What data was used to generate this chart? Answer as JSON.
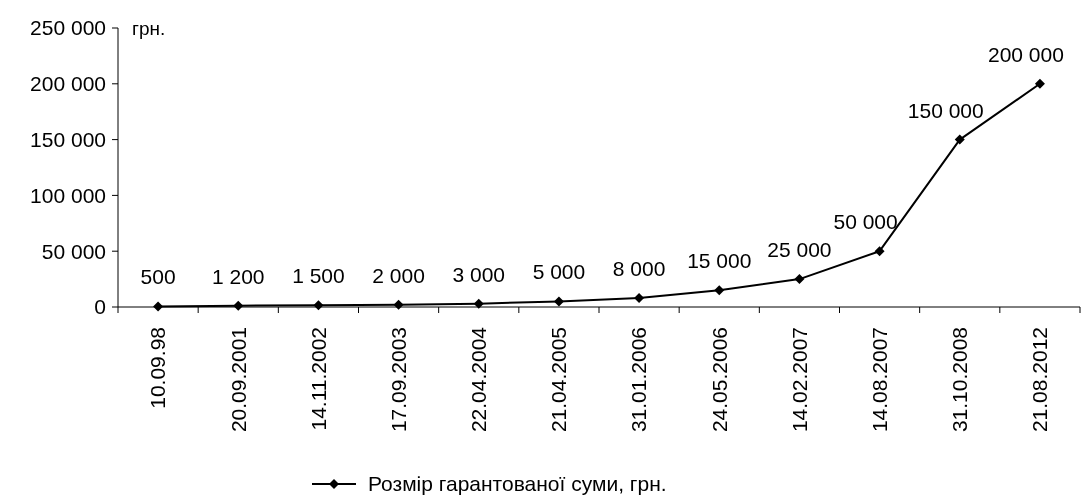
{
  "chart_data": {
    "type": "line",
    "ylabel": "грн.",
    "categories": [
      "10.09.98",
      "20.09.2001",
      "14.11.2002",
      "17.09.2003",
      "22.04.2004",
      "21.04.2005",
      "31.01.2006",
      "24.05.2006",
      "14.02.2007",
      "14.08.2007",
      "31.10.2008",
      "21.08.2012"
    ],
    "series": [
      {
        "name": "Розмір гарантованої суми, грн.",
        "color": "#000000",
        "values": [
          500,
          1200,
          1500,
          2000,
          3000,
          5000,
          8000,
          15000,
          25000,
          50000,
          150000,
          200000
        ],
        "value_labels": [
          "500",
          "1 200",
          "1 500",
          "2 000",
          "3 000",
          "5 000",
          "8 000",
          "15 000",
          "25 000",
          "50 000",
          "150 000",
          "200 000"
        ]
      }
    ],
    "ylim": [
      0,
      250000
    ],
    "yticks": [
      {
        "value": 0,
        "label": "0"
      },
      {
        "value": 50000,
        "label": "50 000"
      },
      {
        "value": 100000,
        "label": "100 000"
      },
      {
        "value": 150000,
        "label": "150 000"
      },
      {
        "value": 200000,
        "label": "200 000"
      },
      {
        "value": 250000,
        "label": "250 000"
      }
    ],
    "grid": false,
    "legend": "bottom",
    "marker": "diamond",
    "line_style": "solid"
  }
}
